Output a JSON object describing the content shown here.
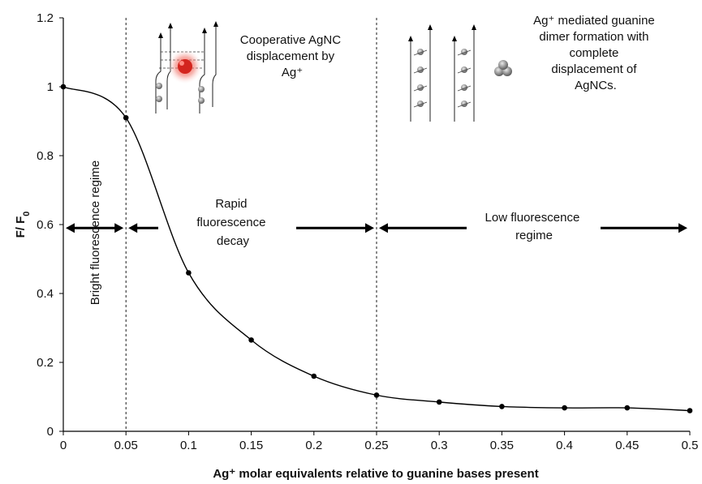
{
  "chart_data": {
    "type": "line",
    "title": "",
    "xlabel": "Ag⁺ molar equivalents relative to guanine bases present",
    "ylabel": "F/ F₀",
    "xlim": [
      0,
      0.5
    ],
    "ylim": [
      0,
      1.2
    ],
    "x_ticks": [
      0,
      0.05,
      0.1,
      0.15,
      0.2,
      0.25,
      0.3,
      0.35,
      0.4,
      0.45,
      0.5
    ],
    "x_tick_labels": [
      "0",
      "0.05",
      "0.1",
      "0.15",
      "0.2",
      "0.25",
      "0.3",
      "0.35",
      "0.4",
      "0.45",
      "0.5"
    ],
    "y_ticks": [
      0,
      0.2,
      0.4,
      0.6,
      0.8,
      1.0,
      1.2
    ],
    "y_tick_labels": [
      "0",
      "0.2",
      "0.4",
      "0.6",
      "0.8",
      "1",
      "1.2"
    ],
    "grid": false,
    "legend": "none",
    "series": [
      {
        "x": [
          0,
          0.05,
          0.1,
          0.15,
          0.2,
          0.25,
          0.3,
          0.35,
          0.4,
          0.45,
          0.5
        ],
        "y": [
          1.0,
          0.91,
          0.46,
          0.265,
          0.16,
          0.105,
          0.085,
          0.072,
          0.068,
          0.068,
          0.06
        ]
      }
    ],
    "vertical_lines": [
      0.05,
      0.25
    ],
    "regimes": [
      {
        "label": "Bright fluorescence regime",
        "x_range": [
          0,
          0.05
        ]
      },
      {
        "label": "Rapid fluorescence decay",
        "x_range": [
          0.05,
          0.25
        ]
      },
      {
        "label": "Low fluorescence regime",
        "x_range": [
          0.25,
          0.5
        ]
      }
    ],
    "regime_arrow_y": 0.59,
    "annotations": {
      "cooperative": [
        "Cooperative AgNC",
        "displacement by",
        "Ag⁺"
      ],
      "dimer": [
        "Ag⁺ mediated guanine",
        "dimer formation with",
        "complete",
        "displacement of",
        "AgNCs."
      ],
      "rapid_decay": [
        "Rapid",
        "fluorescence",
        "decay"
      ],
      "low_regime": [
        "Low fluorescence",
        "regime"
      ],
      "bright_regime": "Bright fluorescence regime"
    },
    "line_color": "#000000",
    "dot_color": "#000000",
    "cluster_color": "#e0302a"
  }
}
